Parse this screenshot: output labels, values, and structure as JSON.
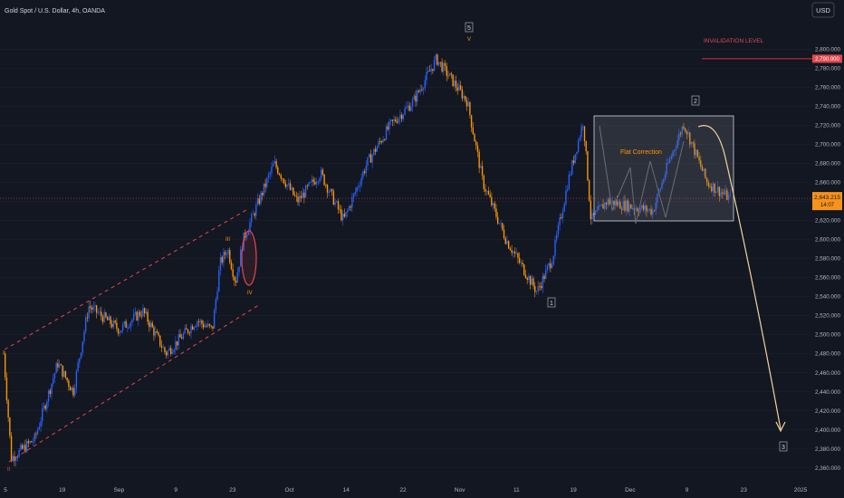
{
  "header": {
    "symbol_title": "Gold Spot / U.S. Dollar, 4h, OANDA",
    "currency_button": "USD"
  },
  "price_scale": {
    "last_price": "2,643.215",
    "countdown": "14:07",
    "invalidation_price": "2,790.000"
  },
  "annotations": {
    "invalidation_label": "INVALIDATION LEVEL",
    "flat_correction_label": "Flat Correction",
    "wave_labels": [
      "III",
      "IV",
      "V",
      "II",
      "5",
      "1",
      "2",
      "3"
    ]
  },
  "colors": {
    "background": "#131722",
    "bull_candle": "#2962ff",
    "bear_candle": "#ff9800",
    "channel_line": "#e0484f",
    "invalidation_line": "#d32f2f",
    "projection_line": "#f2d49b",
    "price_tag": "#f7931a"
  },
  "chart_data": {
    "type": "candlestick",
    "title": "Gold Spot / U.S. Dollar, 4h, OANDA",
    "x_ticks": [
      "5",
      "19",
      "Sep",
      "9",
      "23",
      "Oct",
      "14",
      "22",
      "Nov",
      "11",
      "19",
      "Dec",
      "9",
      "23",
      "2025"
    ],
    "y_ticks": [
      "2,800.000",
      "2,780.000",
      "2,760.000",
      "2,740.000",
      "2,720.000",
      "2,700.000",
      "2,680.000",
      "2,660.000",
      "2,640.000",
      "2,620.000",
      "2,600.000",
      "2,580.000",
      "2,560.000",
      "2,540.000",
      "2,520.000",
      "2,500.000",
      "2,480.000",
      "2,460.000",
      "2,440.000",
      "2,420.000",
      "2,400.000",
      "2,380.000",
      "2,360.000"
    ],
    "ylim": [
      2352,
      2828
    ],
    "price_path": [
      [
        0,
        2480
      ],
      [
        0.01,
        2370
      ],
      [
        0.04,
        2390
      ],
      [
        0.07,
        2470
      ],
      [
        0.09,
        2440
      ],
      [
        0.11,
        2530
      ],
      [
        0.15,
        2505
      ],
      [
        0.18,
        2525
      ],
      [
        0.21,
        2480
      ],
      [
        0.25,
        2515
      ],
      [
        0.27,
        2505
      ],
      [
        0.28,
        2575
      ],
      [
        0.29,
        2590
      ],
      [
        0.3,
        2555
      ],
      [
        0.31,
        2600
      ],
      [
        0.35,
        2680
      ],
      [
        0.38,
        2640
      ],
      [
        0.41,
        2670
      ],
      [
        0.44,
        2620
      ],
      [
        0.47,
        2680
      ],
      [
        0.5,
        2720
      ],
      [
        0.53,
        2745
      ],
      [
        0.56,
        2790
      ],
      [
        0.6,
        2745
      ],
      [
        0.62,
        2660
      ],
      [
        0.65,
        2600
      ],
      [
        0.69,
        2545
      ],
      [
        0.71,
        2580
      ],
      [
        0.73,
        2660
      ],
      [
        0.75,
        2725
      ],
      [
        0.76,
        2620
      ],
      [
        0.78,
        2640
      ],
      [
        0.81,
        2635
      ],
      [
        0.84,
        2630
      ],
      [
        0.86,
        2680
      ],
      [
        0.88,
        2722
      ],
      [
        0.91,
        2660
      ],
      [
        0.94,
        2643
      ]
    ],
    "support_levels": [
      {
        "name": "last",
        "value": 2643.215
      },
      {
        "name": "invalidation",
        "value": 2790
      }
    ]
  }
}
